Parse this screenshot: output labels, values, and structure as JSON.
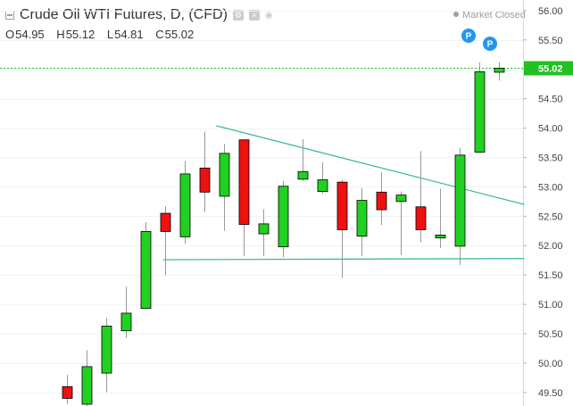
{
  "header": {
    "title": "Crude Oil WTI Futures, D, (CFD)",
    "settings_icon": "gear-icon",
    "hide_icon": "close-icon",
    "visibility_icon": "eye-icon"
  },
  "ohlc": {
    "o_label": "O",
    "o_value": "54.95",
    "h_label": "H",
    "h_value": "55.12",
    "l_label": "L",
    "l_value": "54.81",
    "c_label": "C",
    "c_value": "55.02"
  },
  "market_status": "Market Closed",
  "colors": {
    "up": "#22d022",
    "down": "#ee1111",
    "wick": "#999999",
    "trendline": "#2bb59a",
    "last_price": "#22c022",
    "pivot_marker": "#2196f3",
    "axis_text": "#444444",
    "grid": "#f0f3f5"
  },
  "chart_data": {
    "type": "candlestick",
    "ylim": [
      49.27,
      56.18
    ],
    "yticks": [
      "56.00",
      "55.50",
      "55.00",
      "54.50",
      "54.00",
      "53.50",
      "53.00",
      "52.50",
      "52.00",
      "51.50",
      "51.00",
      "50.50",
      "50.00",
      "49.50"
    ],
    "last_price_label": "55.02",
    "last_price": 55.02,
    "pivot_markers": [
      "P",
      "P"
    ],
    "candles": [
      {
        "open": 49.6,
        "high": 49.8,
        "low": 49.3,
        "close": 49.4
      },
      {
        "open": 49.3,
        "high": 50.22,
        "low": 49.25,
        "close": 49.94
      },
      {
        "open": 49.83,
        "high": 50.77,
        "low": 49.5,
        "close": 50.63
      },
      {
        "open": 50.55,
        "high": 51.3,
        "low": 50.43,
        "close": 50.85
      },
      {
        "open": 50.93,
        "high": 52.4,
        "low": 50.93,
        "close": 52.24
      },
      {
        "open": 52.55,
        "high": 52.67,
        "low": 51.5,
        "close": 52.24
      },
      {
        "open": 52.15,
        "high": 53.44,
        "low": 52.03,
        "close": 53.22
      },
      {
        "open": 53.32,
        "high": 53.94,
        "low": 52.57,
        "close": 52.91
      },
      {
        "open": 52.84,
        "high": 53.73,
        "low": 52.25,
        "close": 53.57
      },
      {
        "open": 53.8,
        "high": 53.8,
        "low": 51.82,
        "close": 52.36
      },
      {
        "open": 52.2,
        "high": 52.62,
        "low": 51.82,
        "close": 52.37
      },
      {
        "open": 51.98,
        "high": 53.1,
        "low": 51.8,
        "close": 53.01
      },
      {
        "open": 53.13,
        "high": 53.81,
        "low": 53.1,
        "close": 53.26
      },
      {
        "open": 52.92,
        "high": 53.42,
        "low": 52.88,
        "close": 53.12
      },
      {
        "open": 53.08,
        "high": 53.12,
        "low": 51.45,
        "close": 52.27
      },
      {
        "open": 52.16,
        "high": 52.98,
        "low": 51.82,
        "close": 52.77
      },
      {
        "open": 52.91,
        "high": 53.25,
        "low": 52.35,
        "close": 52.61
      },
      {
        "open": 52.75,
        "high": 52.92,
        "low": 51.84,
        "close": 52.86
      },
      {
        "open": 52.66,
        "high": 53.61,
        "low": 52.06,
        "close": 52.27
      },
      {
        "open": 52.13,
        "high": 52.97,
        "low": 51.96,
        "close": 52.18
      },
      {
        "open": 51.99,
        "high": 53.66,
        "low": 51.67,
        "close": 53.54
      },
      {
        "open": 53.59,
        "high": 55.12,
        "low": 53.58,
        "close": 54.96
      },
      {
        "open": 54.95,
        "high": 55.12,
        "low": 54.81,
        "close": 55.02
      }
    ],
    "trendlines": [
      {
        "from_bar": 7.6,
        "from_value": 54.04,
        "to_bar": 23.3,
        "to_value": 52.7
      },
      {
        "from_bar": 4.9,
        "from_value": 51.76,
        "to_bar": 23.3,
        "to_value": 51.78
      }
    ]
  }
}
